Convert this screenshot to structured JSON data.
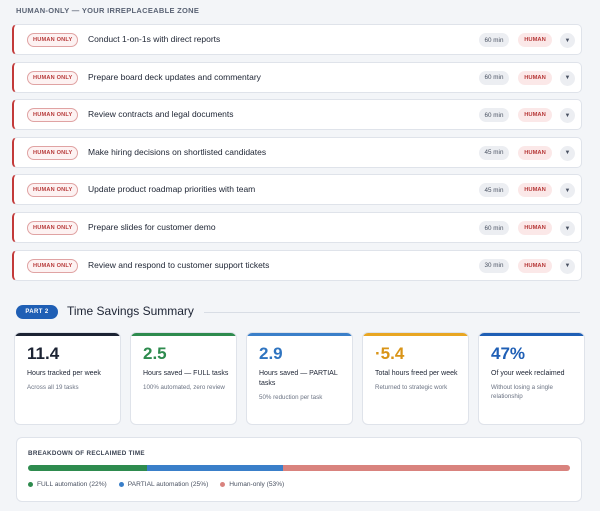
{
  "zone_title": "HUMAN-ONLY — YOUR IRREPLACEABLE ZONE",
  "tasks": [
    {
      "tag": "HUMAN ONLY",
      "text": "Conduct 1-on-1s with direct reports",
      "duration": "60 min",
      "category": "HUMAN"
    },
    {
      "tag": "HUMAN ONLY",
      "text": "Prepare board deck updates and commentary",
      "duration": "60 min",
      "category": "HUMAN"
    },
    {
      "tag": "HUMAN ONLY",
      "text": "Review contracts and legal documents",
      "duration": "60 min",
      "category": "HUMAN"
    },
    {
      "tag": "HUMAN ONLY",
      "text": "Make hiring decisions on shortlisted candidates",
      "duration": "45 min",
      "category": "HUMAN"
    },
    {
      "tag": "HUMAN ONLY",
      "text": "Update product roadmap priorities with team",
      "duration": "45 min",
      "category": "HUMAN"
    },
    {
      "tag": "HUMAN ONLY",
      "text": "Prepare slides for customer demo",
      "duration": "60 min",
      "category": "HUMAN"
    },
    {
      "tag": "HUMAN ONLY",
      "text": "Review and respond to customer support tickets",
      "duration": "30 min",
      "category": "HUMAN"
    }
  ],
  "part": {
    "badge": "PART 2",
    "title": "Time Savings Summary"
  },
  "stats": [
    {
      "value": "11.4",
      "label": "Hours tracked per week",
      "sub": "Across all 19 tasks",
      "color": "#1c2333",
      "bar_color": "#1c2333"
    },
    {
      "value": "2.5",
      "label": "Hours saved — FULL tasks",
      "sub": "100% automated, zero review",
      "color": "#2e8b4e",
      "bar_color": "#2e8b4e"
    },
    {
      "value": "2.9",
      "label": "Hours saved — PARTIAL tasks",
      "sub": "50% reduction per task",
      "color": "#2f74c0",
      "bar_color": "#3a7fc9"
    },
    {
      "value": "·5.4",
      "label": "Total hours freed per week",
      "sub": "Returned to strategic work",
      "color": "#d99417",
      "bar_color": "#e8a623"
    },
    {
      "value": "47%",
      "label": "Of your week reclaimed",
      "sub": "Without losing a single relationship",
      "color": "#1f5fb5",
      "bar_color": "#1f5fb5"
    }
  ],
  "breakdown": {
    "title": "BREAKDOWN OF RECLAIMED TIME",
    "segments": [
      {
        "label": "FULL automation (22%)",
        "percent": 22,
        "color": "#2e8b4e"
      },
      {
        "label": "PARTIAL automation (25%)",
        "percent": 25,
        "color": "#3a7fc9"
      },
      {
        "label": "Human-only (53%)",
        "percent": 53,
        "color": "#d9837e"
      }
    ]
  }
}
